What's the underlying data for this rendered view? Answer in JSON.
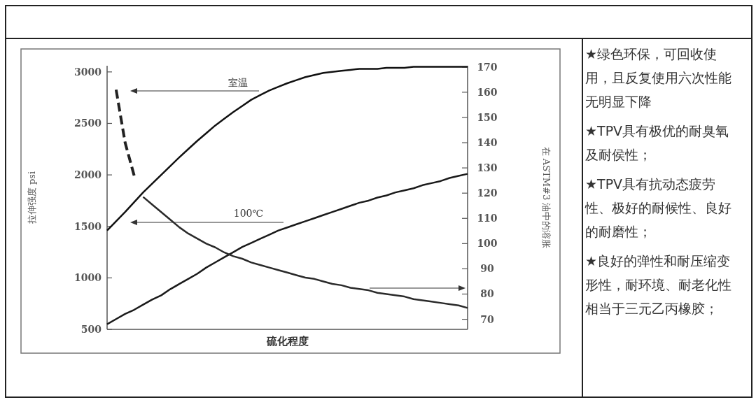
{
  "chart_data": [
    {
      "type": "line",
      "xlabel": "硫化程度",
      "ylabel": "拉伸强度 psi",
      "y2label": "在 ASTM#3 油中的溶胀",
      "categories": [
        null,
        null,
        null,
        null,
        null,
        null,
        null,
        null,
        null,
        null,
        null,
        null,
        null,
        null,
        null,
        null,
        null,
        null,
        null,
        null,
        null,
        null,
        null,
        null,
        null,
        null,
        null,
        null,
        null,
        null,
        null,
        null,
        null,
        null,
        null,
        null,
        null,
        null,
        null,
        null,
        null
      ],
      "ylim": [
        500,
        3060
      ],
      "yticks": [
        500,
        1000,
        1500,
        2000,
        2500,
        3000
      ],
      "y2lim": [
        66,
        170.5
      ],
      "y2ticks": [
        70,
        80,
        90,
        100,
        110,
        120,
        130,
        140,
        150,
        160,
        170
      ],
      "annotations": [
        "室温",
        "100℃"
      ],
      "series": [
        {
          "color": "#111111",
          "values": [
            1460,
            1550,
            1640,
            1735,
            1830,
            1915,
            2000,
            2085,
            2170,
            2250,
            2330,
            2405,
            2480,
            2545,
            2610,
            2670,
            2730,
            2775,
            2820,
            2855,
            2890,
            2920,
            2950,
            2970,
            2990,
            3000,
            3010,
            3020,
            3030,
            3030,
            3030,
            3040,
            3040,
            3040,
            3050,
            3050,
            3050,
            3050,
            3050,
            3050,
            3050
          ]
        },
        {
          "color": "#1a1a1a",
          "values": [
            550,
            600,
            650,
            690,
            740,
            790,
            830,
            890,
            940,
            990,
            1040,
            1100,
            1150,
            1200,
            1250,
            1300,
            1340,
            1380,
            1420,
            1460,
            1490,
            1520,
            1550,
            1580,
            1610,
            1640,
            1670,
            1700,
            1730,
            1750,
            1780,
            1800,
            1830,
            1850,
            1870,
            1900,
            1920,
            1940,
            1970,
            1990,
            2010
          ]
        },
        {
          "color": "#222222",
          "axis": "y2",
          "line_style": "dashed",
          "values": [
            null,
            161,
            140,
            127,
            null,
            null,
            null,
            null,
            null,
            null,
            null,
            null,
            null,
            null,
            null,
            null,
            null,
            null,
            null,
            null,
            null,
            null,
            null,
            null,
            null,
            null,
            null,
            null,
            null,
            null,
            null,
            null,
            null,
            null,
            null,
            null,
            null,
            null,
            null,
            null,
            null
          ]
        },
        {
          "color": "#2a2a2a",
          "axis": "y2",
          "values": [
            null,
            null,
            null,
            null,
            118.5,
            115.5,
            112.5,
            109.5,
            106.5,
            104,
            102,
            100,
            98.5,
            96.5,
            95,
            94,
            92.5,
            91.5,
            90.5,
            89.5,
            88.5,
            87.5,
            86.5,
            86,
            85,
            84,
            83.5,
            82.5,
            82,
            81.5,
            80.5,
            80,
            79.5,
            79,
            78,
            77.5,
            77,
            76.5,
            76,
            75.5,
            74.5
          ]
        }
      ]
    },
    {
      "type": "other",
      "annotations": [
        "★绿色环保，可回收使用，且反复使用六次性能无明显下降",
        "★TPV具有极优的耐臭氧及耐侯性；",
        "★TPV具有抗动态疲劳性、极好的耐候性、良好的耐磨性；",
        "★良好的弹性和耐压缩变形性，耐环境、耐老化性相当于三元乙丙橡胶；"
      ]
    }
  ]
}
